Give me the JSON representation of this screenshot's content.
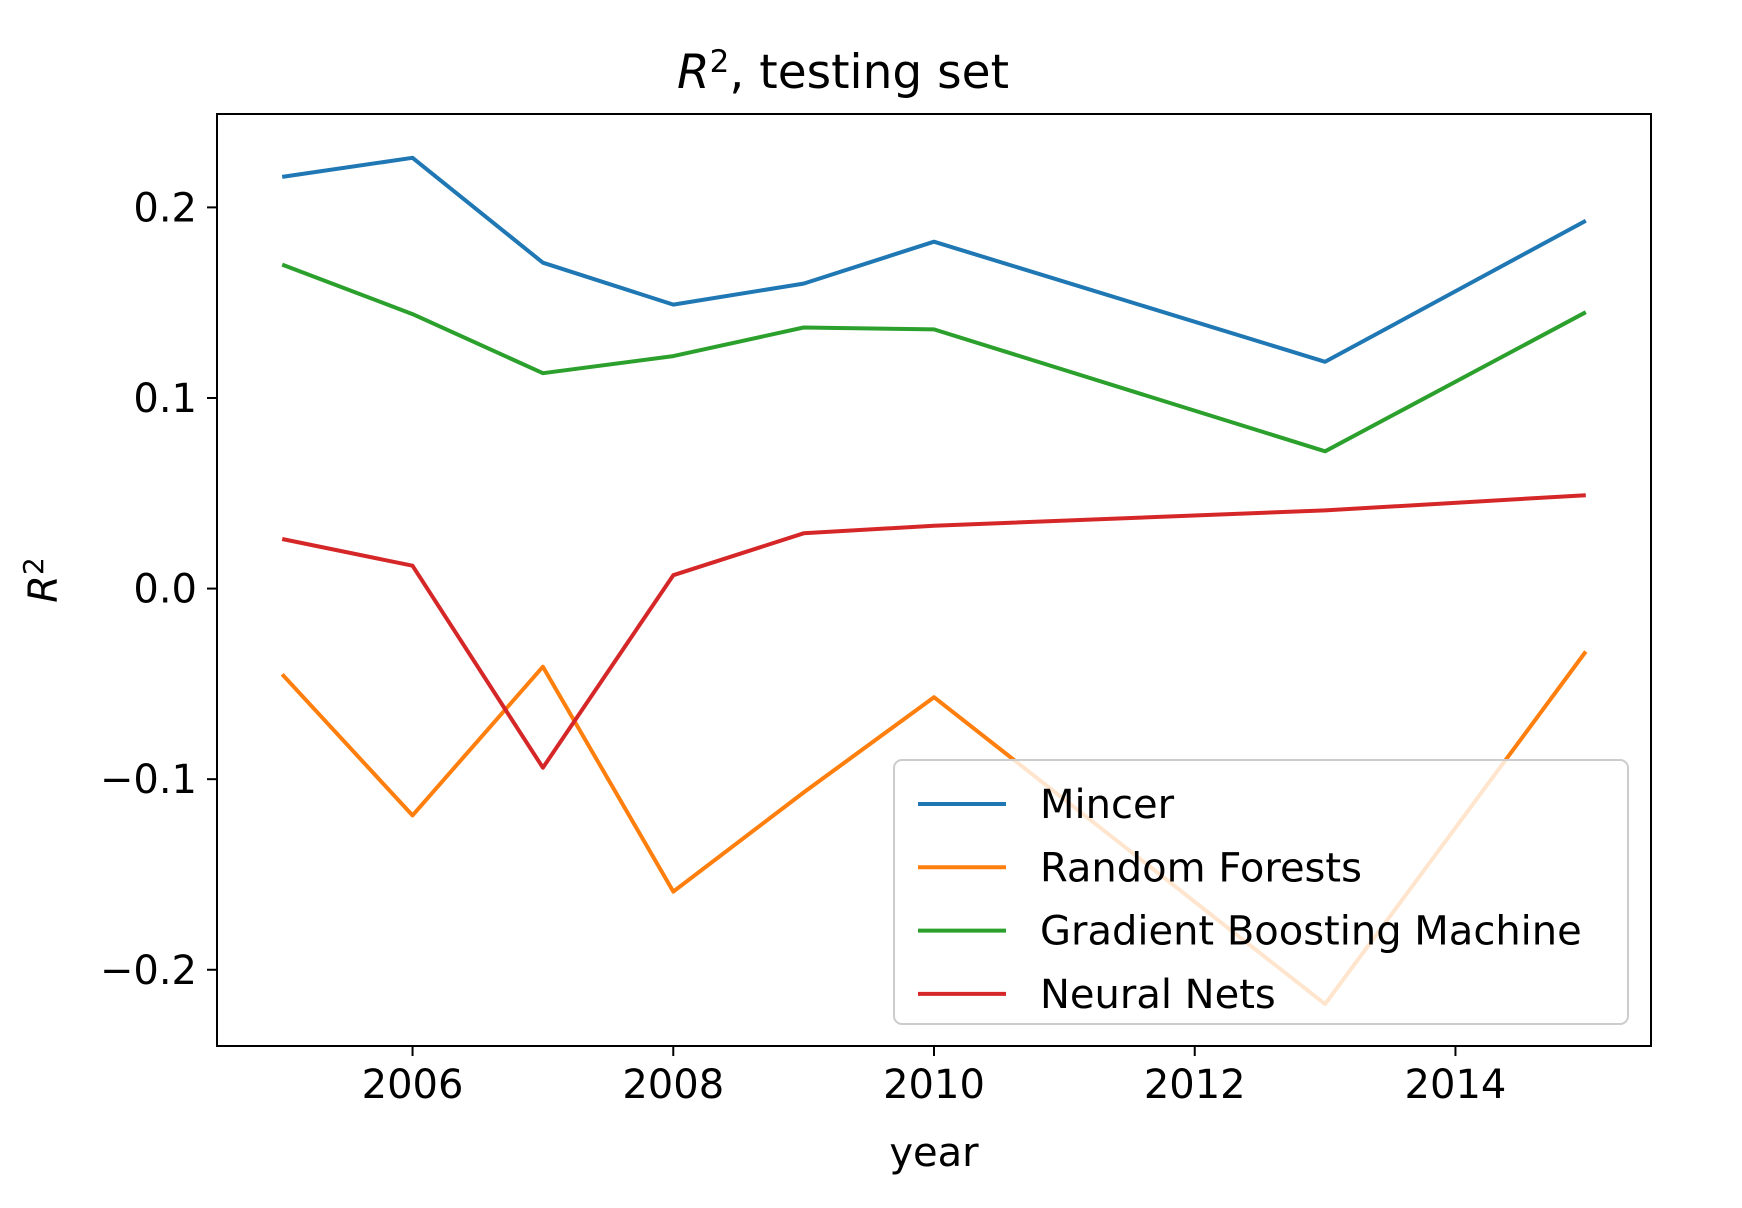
{
  "chart_data": {
    "type": "line",
    "title": {
      "symbol": "R",
      "superscript": "2",
      "rest": ", testing set"
    },
    "xlabel": "year",
    "ylabel": {
      "symbol": "R",
      "superscript": "2"
    },
    "xlim": [
      2004.5,
      2015.5
    ],
    "ylim": [
      -0.24,
      0.249
    ],
    "xticks": [
      2006,
      2008,
      2010,
      2012,
      2014
    ],
    "xtick_labels": [
      "2006",
      "2008",
      "2010",
      "2012",
      "2014"
    ],
    "yticks": [
      -0.2,
      -0.1,
      0.0,
      0.1,
      0.2
    ],
    "ytick_labels": [
      "−0.2",
      "−0.1",
      "0.0",
      "0.1",
      "0.2"
    ],
    "grid": false,
    "legend_position": "lower-right",
    "x": [
      2005,
      2006,
      2007,
      2008,
      2009,
      2010,
      2013,
      2015
    ],
    "series": [
      {
        "name": "Mincer",
        "color": "#1f77b4",
        "values": [
          0.216,
          0.226,
          0.171,
          0.149,
          0.16,
          0.182,
          0.119,
          0.193
        ]
      },
      {
        "name": "Random Forests",
        "color": "#ff7f0e",
        "values": [
          -0.045,
          -0.119,
          -0.041,
          -0.159,
          -0.107,
          -0.057,
          -0.218,
          -0.033
        ]
      },
      {
        "name": "Gradient Boosting Machine",
        "color": "#2ca02c",
        "values": [
          0.17,
          0.144,
          0.113,
          0.122,
          0.137,
          0.136,
          0.072,
          0.145
        ]
      },
      {
        "name": "Neural Nets",
        "color": "#d62728",
        "values": [
          0.026,
          0.012,
          -0.094,
          0.007,
          0.029,
          0.033,
          0.041,
          0.049
        ]
      }
    ]
  }
}
